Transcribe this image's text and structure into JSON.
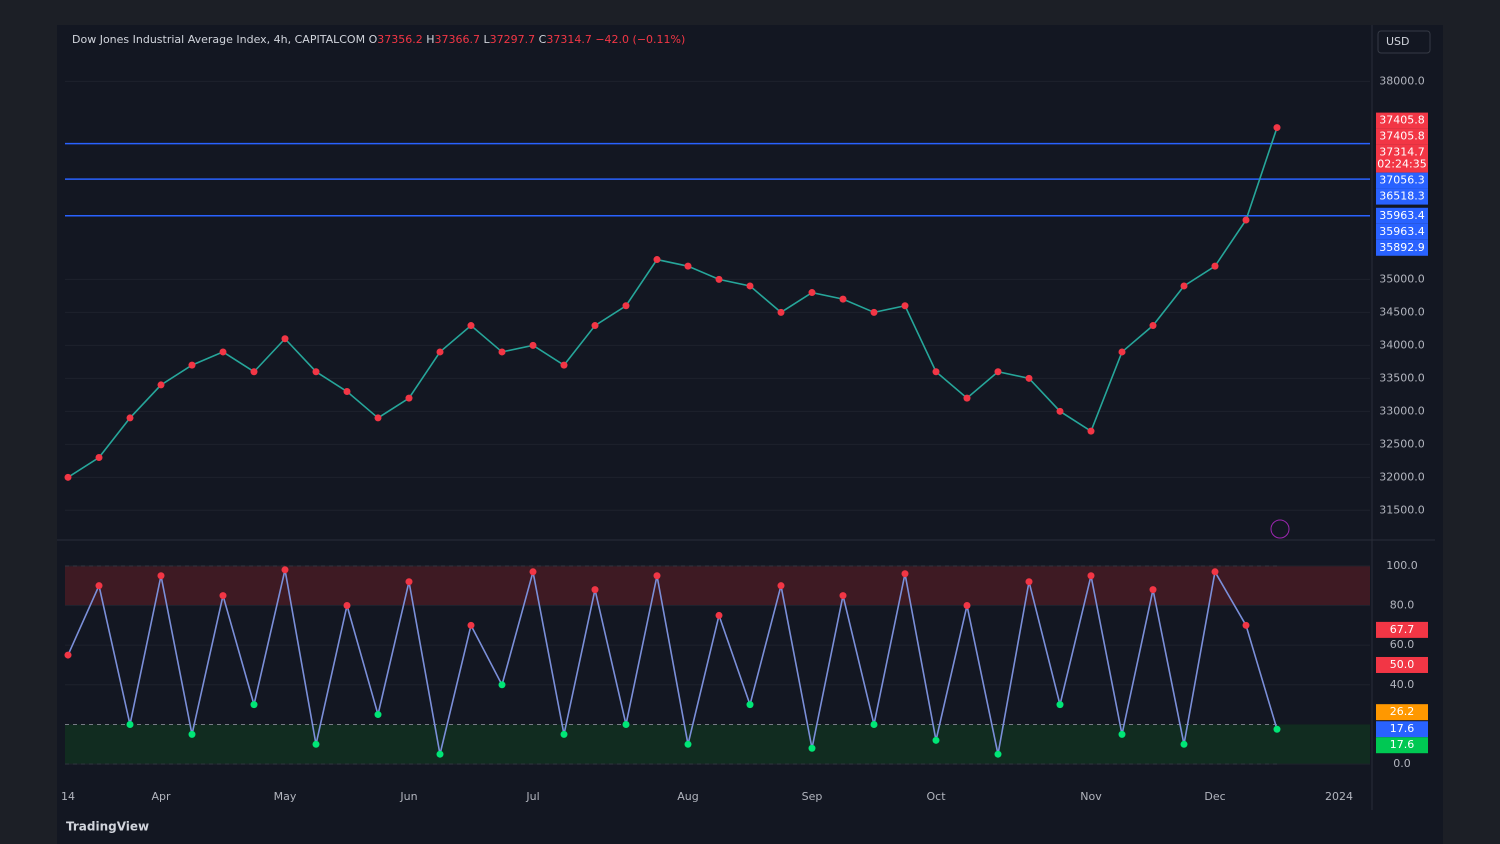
{
  "currency": "USD",
  "footer": {
    "brand": "TradingView"
  },
  "chart_data": [
    {
      "type": "line",
      "title": "Dow Jones Industrial Average Index, 4h, CAPITALCOM",
      "ohlc": [
        {
          "label": "O",
          "value": 37356.2
        },
        {
          "label": "H",
          "value": 37366.7
        },
        {
          "label": "L",
          "value": 37297.7
        },
        {
          "label": "C",
          "value": 37314.7
        }
      ],
      "change": "−42.0 (−0.11%)",
      "color": "#26a69a",
      "values": [
        32000,
        32300,
        32900,
        33400,
        33700,
        33900,
        33600,
        34100,
        33600,
        33300,
        32900,
        33200,
        33900,
        34300,
        33900,
        34000,
        33700,
        34300,
        34600,
        35300,
        35200,
        35000,
        34900,
        34500,
        34800,
        34700,
        34500,
        34600,
        33600,
        33200,
        33600,
        33500,
        33000,
        32700,
        33900,
        34300,
        34900,
        35200,
        35900,
        37300,
        null,
        null
      ],
      "ylim": [
        31050,
        38400
      ],
      "yticks": [
        {
          "value": 38000,
          "label": "38000.0"
        },
        {
          "value": 35000,
          "label": "35000.0"
        },
        {
          "value": 34500,
          "label": "34500.0"
        },
        {
          "value": 34000,
          "label": "34000.0"
        },
        {
          "value": 33500,
          "label": "33500.0"
        },
        {
          "value": 33000,
          "label": "33000.0"
        },
        {
          "value": 32500,
          "label": "32500.0"
        },
        {
          "value": 32000,
          "label": "32000.0"
        },
        {
          "value": 31500,
          "label": "31500.0"
        }
      ],
      "levels": [
        37056.3,
        36518.3,
        35963.4
      ],
      "level_color": "#2962ff",
      "price_tags": [
        {
          "value": 37405.8,
          "color": "#f23645"
        },
        {
          "value": 37405.8,
          "color": "#f23645"
        },
        {
          "value": 37314.7,
          "color": "#f23645",
          "countdown": "02:24:35"
        },
        {
          "value": 37056.3,
          "color": "#2962ff"
        },
        {
          "value": 36518.3,
          "color": "#2962ff"
        },
        {
          "value": 35963.4,
          "color": "#2962ff"
        },
        {
          "value": 35963.4,
          "color": "#2962ff"
        },
        {
          "value": 35892.9,
          "color": "#2962ff"
        }
      ]
    },
    {
      "type": "line",
      "categories": [
        "14",
        null,
        null,
        "Apr",
        null,
        null,
        null,
        "May",
        null,
        null,
        null,
        "Jun",
        null,
        null,
        null,
        "Jul",
        null,
        null,
        null,
        null,
        "Aug",
        null,
        null,
        null,
        "Sep",
        null,
        null,
        null,
        "Oct",
        null,
        null,
        null,
        null,
        "Nov",
        null,
        null,
        null,
        "Dec",
        null,
        null,
        null,
        "2024"
      ],
      "color": "#7b8fd9",
      "values": [
        55,
        90,
        20,
        95,
        15,
        85,
        30,
        98,
        10,
        80,
        25,
        92,
        5,
        70,
        40,
        97,
        15,
        88,
        20,
        95,
        10,
        75,
        30,
        90,
        8,
        85,
        20,
        96,
        12,
        80,
        5,
        92,
        30,
        95,
        15,
        88,
        10,
        97,
        70,
        17.6,
        null,
        null
      ],
      "ylim": [
        -7,
        109
      ],
      "yticks": [
        {
          "value": 100,
          "label": "100.0"
        },
        {
          "value": 80,
          "label": "80.0"
        },
        {
          "value": 60,
          "label": "60.0"
        },
        {
          "value": 40,
          "label": "40.0"
        },
        {
          "value": 0,
          "label": "0.0"
        }
      ],
      "bands": [
        {
          "from": 80,
          "to": 100,
          "color": "#4a1c24"
        },
        {
          "from": 0,
          "to": 20,
          "color": "#123220"
        }
      ],
      "tags": [
        {
          "value": 67.7,
          "color": "#f23645"
        },
        {
          "value": 50,
          "label": "50.0",
          "color": "#f23645"
        },
        {
          "value": 26.2,
          "color": "#ff9800"
        },
        {
          "value": 17.6,
          "color": "#2962ff"
        },
        {
          "value": 17.6,
          "color": "#00c853"
        }
      ]
    }
  ]
}
